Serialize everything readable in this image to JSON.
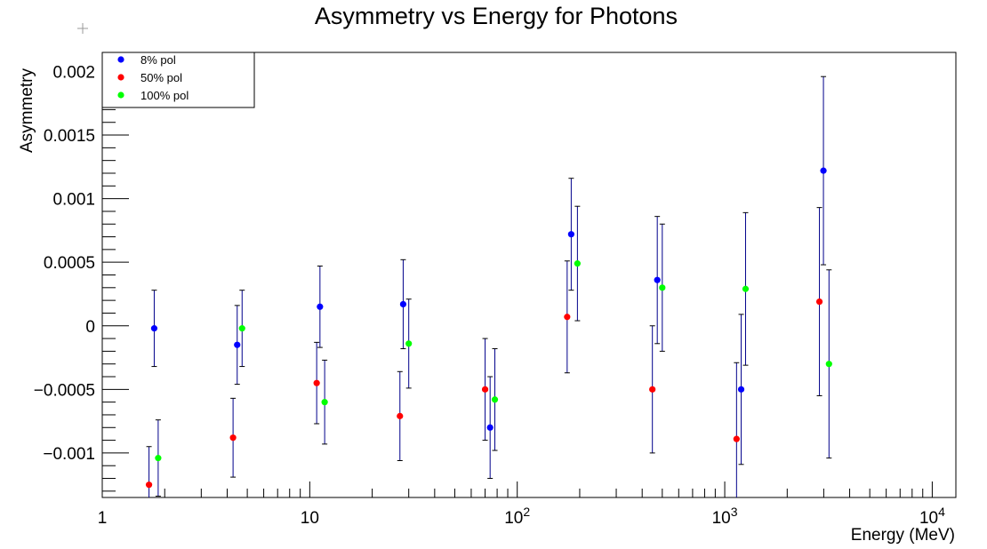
{
  "chart_data": {
    "type": "scatter",
    "title": "Asymmetry vs Energy for Photons",
    "xlabel": "Energy (MeV)",
    "ylabel": "Asymmetry",
    "xscale": "log",
    "xlim": [
      1,
      13000
    ],
    "ylim": [
      -0.00135,
      0.00215
    ],
    "x_major_ticks": [
      {
        "value": 1,
        "mantissa": "1",
        "exp": ""
      },
      {
        "value": 10,
        "mantissa": "10",
        "exp": ""
      },
      {
        "value": 100,
        "mantissa": "10",
        "exp": "2"
      },
      {
        "value": 1000,
        "mantissa": "10",
        "exp": "3"
      },
      {
        "value": 10000,
        "mantissa": "10",
        "exp": "4"
      }
    ],
    "y_major_ticks": [
      {
        "value": -0.001,
        "label": "−0.001"
      },
      {
        "value": -0.0005,
        "label": "−0.0005"
      },
      {
        "value": 0,
        "label": "0"
      },
      {
        "value": 0.0005,
        "label": "0.0005"
      },
      {
        "value": 0.001,
        "label": "0.001"
      },
      {
        "value": 0.0015,
        "label": "0.0015"
      },
      {
        "value": 0.002,
        "label": "0.002"
      }
    ],
    "legend_position": "top-left",
    "grid": false,
    "series": [
      {
        "name": "8% pol",
        "color": "#0000ff",
        "points": [
          {
            "x": 1.78,
            "y": -2e-05,
            "err": 0.0003
          },
          {
            "x": 4.47,
            "y": -0.00015,
            "err": 0.00031
          },
          {
            "x": 11.2,
            "y": 0.00015,
            "err": 0.00032
          },
          {
            "x": 28.2,
            "y": 0.00017,
            "err": 0.00035
          },
          {
            "x": 74.0,
            "y": -0.0008,
            "err": 0.0004
          },
          {
            "x": 182,
            "y": 0.00072,
            "err": 0.00044
          },
          {
            "x": 473,
            "y": 0.00036,
            "err": 0.0005
          },
          {
            "x": 1200,
            "y": -0.0005,
            "err": 0.00059
          },
          {
            "x": 2990,
            "y": 0.00122,
            "err": 0.00074
          }
        ]
      },
      {
        "name": "50% pol",
        "color": "#ff0000",
        "points": [
          {
            "x": 1.68,
            "y": -0.00125,
            "err": 0.0003
          },
          {
            "x": 4.27,
            "y": -0.00088,
            "err": 0.00031
          },
          {
            "x": 10.8,
            "y": -0.00045,
            "err": 0.00032
          },
          {
            "x": 27.2,
            "y": -0.00071,
            "err": 0.00035
          },
          {
            "x": 70.0,
            "y": -0.0005,
            "err": 0.0004
          },
          {
            "x": 174,
            "y": 7e-05,
            "err": 0.00044
          },
          {
            "x": 448,
            "y": -0.0005,
            "err": 0.0005
          },
          {
            "x": 1140,
            "y": -0.00089,
            "err": 0.0006
          },
          {
            "x": 2860,
            "y": 0.00019,
            "err": 0.00074
          }
        ]
      },
      {
        "name": "100% pol",
        "color": "#00ff00",
        "points": [
          {
            "x": 1.86,
            "y": -0.00104,
            "err": 0.0003
          },
          {
            "x": 4.72,
            "y": -2e-05,
            "err": 0.0003
          },
          {
            "x": 11.8,
            "y": -0.0006,
            "err": 0.00033
          },
          {
            "x": 30.0,
            "y": -0.00014,
            "err": 0.00035
          },
          {
            "x": 78.0,
            "y": -0.00058,
            "err": 0.0004
          },
          {
            "x": 195,
            "y": 0.00049,
            "err": 0.00045
          },
          {
            "x": 500,
            "y": 0.0003,
            "err": 0.0005
          },
          {
            "x": 1260,
            "y": 0.00029,
            "err": 0.0006
          },
          {
            "x": 3180,
            "y": -0.0003,
            "err": 0.00074
          }
        ]
      }
    ]
  }
}
